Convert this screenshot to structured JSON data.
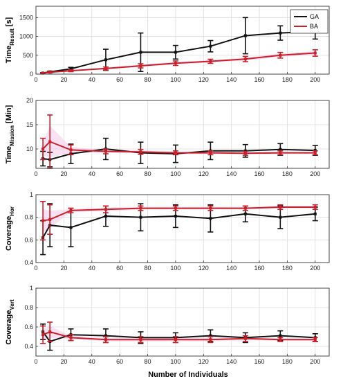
{
  "xlabel": "Number of Individuals",
  "colors": {
    "GA": "#111111",
    "BA": "#c8202a",
    "band": "#f6c6ea",
    "grid": "#dcdcdc"
  },
  "legend": {
    "placement": "top-right",
    "entries": [
      "GA",
      "BA"
    ]
  },
  "chart_data": [
    {
      "type": "line",
      "ylabel_main": "Time",
      "ylabel_sub": "Result",
      "ylabel_unit": " [s]",
      "xlim": [
        0,
        210
      ],
      "ylim": [
        0,
        1800
      ],
      "xticks": [
        0,
        20,
        40,
        60,
        80,
        100,
        120,
        140,
        160,
        180,
        200
      ],
      "yticks": [
        0,
        500,
        1000,
        1500
      ],
      "grid": true,
      "x": [
        5,
        10,
        25,
        50,
        75,
        100,
        125,
        150,
        175,
        200
      ],
      "series": [
        {
          "name": "GA",
          "values": [
            30,
            60,
            140,
            380,
            580,
            580,
            740,
            1020,
            1090,
            1130
          ],
          "err": [
            10,
            20,
            40,
            280,
            510,
            180,
            150,
            480,
            190,
            200
          ]
        },
        {
          "name": "BA",
          "values": [
            25,
            50,
            90,
            150,
            220,
            290,
            340,
            400,
            500,
            560
          ],
          "err": [
            10,
            15,
            25,
            40,
            55,
            60,
            55,
            70,
            75,
            85
          ]
        }
      ]
    },
    {
      "type": "line",
      "ylabel_main": "Time",
      "ylabel_sub": "Mission",
      "ylabel_unit": " [Min]",
      "xlim": [
        0,
        210
      ],
      "ylim": [
        6,
        20
      ],
      "xticks": [
        0,
        20,
        40,
        60,
        80,
        100,
        120,
        140,
        160,
        180,
        200
      ],
      "yticks": [
        10,
        15,
        20
      ],
      "grid": true,
      "x": [
        5,
        10,
        25,
        50,
        75,
        100,
        125,
        150,
        175,
        200
      ],
      "series": [
        {
          "name": "GA",
          "values": [
            8.0,
            7.8,
            9.0,
            10.0,
            9.2,
            9.0,
            9.6,
            9.6,
            9.9,
            9.7
          ],
          "err": [
            1.5,
            1.5,
            2.0,
            2.2,
            2.2,
            1.8,
            1.8,
            1.3,
            1.2,
            1.0
          ]
        },
        {
          "name": "BA",
          "values": [
            10.0,
            11.5,
            9.8,
            9.5,
            9.4,
            9.2,
            9.2,
            9.1,
            9.2,
            9.2
          ],
          "err": [
            2.2,
            5.5,
            1.0,
            0.5,
            0.5,
            0.4,
            0.4,
            0.4,
            0.4,
            0.4
          ]
        }
      ]
    },
    {
      "type": "line",
      "ylabel_main": "Coverage",
      "ylabel_sub": "Hor",
      "ylabel_unit": "",
      "xlim": [
        0,
        210
      ],
      "ylim": [
        0.4,
        1.0
      ],
      "xticks": [
        0,
        20,
        40,
        60,
        80,
        100,
        120,
        140,
        160,
        180,
        200
      ],
      "yticks": [
        0.4,
        0.6,
        0.8,
        1.0
      ],
      "grid": true,
      "x": [
        5,
        10,
        25,
        50,
        75,
        100,
        125,
        150,
        175,
        200
      ],
      "series": [
        {
          "name": "GA",
          "values": [
            0.62,
            0.73,
            0.71,
            0.81,
            0.8,
            0.81,
            0.79,
            0.83,
            0.8,
            0.83
          ],
          "err": [
            0.15,
            0.19,
            0.17,
            0.09,
            0.12,
            0.1,
            0.12,
            0.07,
            0.1,
            0.06
          ]
        },
        {
          "name": "BA",
          "values": [
            0.77,
            0.78,
            0.86,
            0.87,
            0.88,
            0.88,
            0.88,
            0.88,
            0.89,
            0.89
          ],
          "err": [
            0.17,
            0.13,
            0.02,
            0.03,
            0.02,
            0.02,
            0.02,
            0.02,
            0.02,
            0.02
          ]
        }
      ]
    },
    {
      "type": "line",
      "ylabel_main": "Coverage",
      "ylabel_sub": "Vert",
      "ylabel_unit": "",
      "xlim": [
        0,
        210
      ],
      "ylim": [
        0.3,
        1.0
      ],
      "xticks": [
        0,
        20,
        40,
        60,
        80,
        100,
        120,
        140,
        160,
        180,
        200
      ],
      "yticks": [
        0.4,
        0.6,
        0.8,
        1.0
      ],
      "grid": true,
      "x": [
        5,
        10,
        25,
        50,
        75,
        100,
        125,
        150,
        175,
        200
      ],
      "series": [
        {
          "name": "GA",
          "values": [
            0.55,
            0.45,
            0.52,
            0.51,
            0.49,
            0.49,
            0.51,
            0.49,
            0.51,
            0.49
          ],
          "err": [
            0.08,
            0.09,
            0.06,
            0.07,
            0.06,
            0.05,
            0.06,
            0.05,
            0.05,
            0.04
          ]
        },
        {
          "name": "BA",
          "values": [
            0.52,
            0.55,
            0.49,
            0.47,
            0.47,
            0.47,
            0.47,
            0.48,
            0.47,
            0.47
          ],
          "err": [
            0.09,
            0.1,
            0.03,
            0.03,
            0.03,
            0.03,
            0.03,
            0.03,
            0.02,
            0.02
          ]
        }
      ]
    }
  ]
}
